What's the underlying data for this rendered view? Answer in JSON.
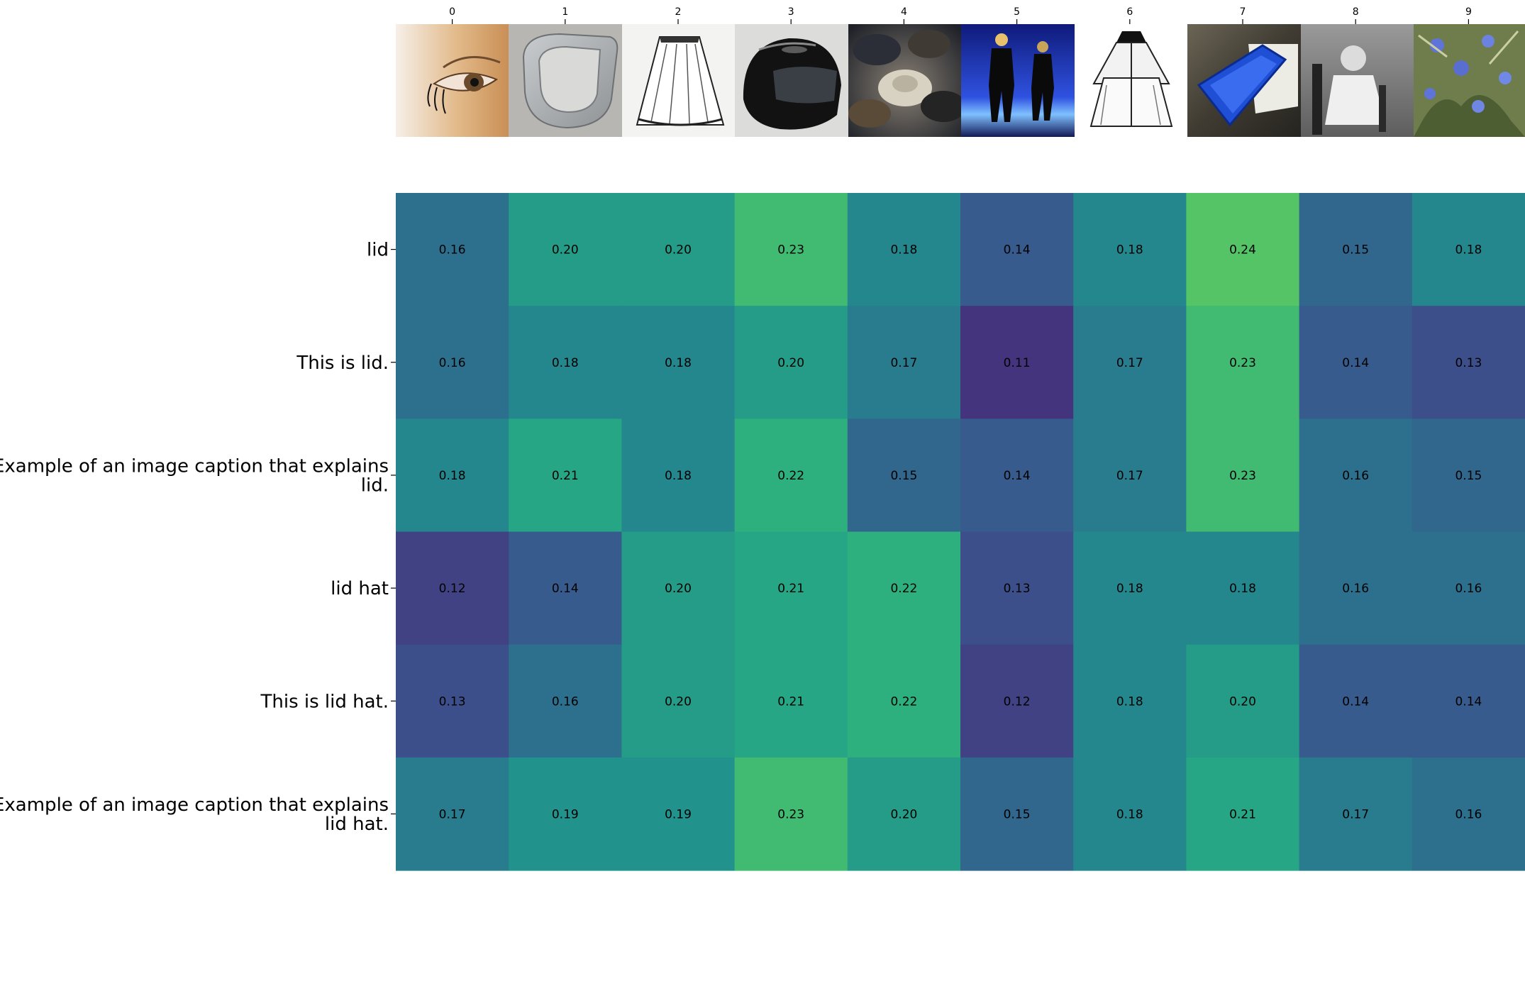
{
  "chart_data": {
    "type": "heatmap",
    "title": "",
    "xlabel": "",
    "ylabel": "",
    "x_tick_labels": [
      "0",
      "1",
      "2",
      "3",
      "4",
      "5",
      "6",
      "7",
      "8",
      "9"
    ],
    "column_images": [
      "eye with eyelashes",
      "galvanized metal thimble",
      "sketch of a skirt",
      "black motorcycle helmet",
      "pile of felt hats",
      "mannequins in suits under blue light",
      "sketch of a cape coat",
      "blue plastic food container with lid",
      "black and white photo of a child in a chair",
      "blue flowers with green leaves"
    ],
    "y_labels": [
      [
        "lid"
      ],
      [
        "This is lid."
      ],
      [
        "Example of an image caption that explains",
        "lid."
      ],
      [
        "lid hat"
      ],
      [
        "This is lid hat."
      ],
      [
        "Example of an image caption that explains",
        "lid hat."
      ]
    ],
    "values": [
      [
        0.16,
        0.2,
        0.2,
        0.23,
        0.18,
        0.14,
        0.18,
        0.24,
        0.15,
        0.18
      ],
      [
        0.16,
        0.18,
        0.18,
        0.2,
        0.17,
        0.11,
        0.17,
        0.23,
        0.14,
        0.13
      ],
      [
        0.18,
        0.21,
        0.18,
        0.22,
        0.15,
        0.14,
        0.17,
        0.23,
        0.16,
        0.15
      ],
      [
        0.12,
        0.14,
        0.2,
        0.21,
        0.22,
        0.13,
        0.18,
        0.18,
        0.16,
        0.16
      ],
      [
        0.13,
        0.16,
        0.2,
        0.21,
        0.22,
        0.12,
        0.18,
        0.2,
        0.14,
        0.14
      ],
      [
        0.17,
        0.19,
        0.19,
        0.23,
        0.2,
        0.15,
        0.18,
        0.21,
        0.17,
        0.16
      ]
    ],
    "value_format": "0.00",
    "colormap": "viridis",
    "color_range": [
      0.075,
      0.3
    ],
    "grid": false,
    "legend": "none"
  }
}
